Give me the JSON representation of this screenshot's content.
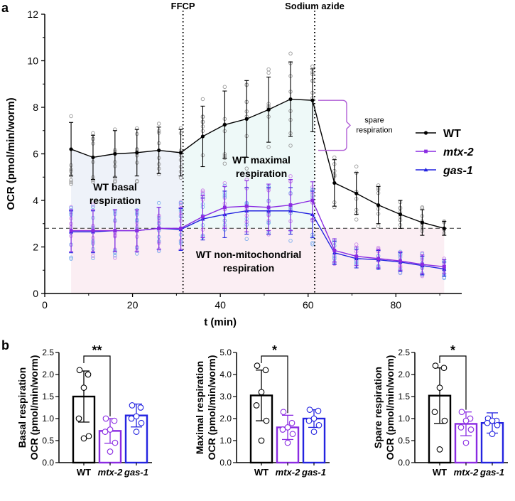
{
  "panels": {
    "a": "a",
    "b": "b"
  },
  "colors": {
    "wt": "#000000",
    "mtx2": "#8a2be2",
    "gas1": "#2424e0",
    "wt_points": "#9a9a9a",
    "mtx2_points": "#cc88e8",
    "gas1_points": "#7fb0ee"
  },
  "chart_data": [
    {
      "type": "line",
      "xlabel": "t (min)",
      "ylabel": "OCR (pmol/min/worm)",
      "xlim": [
        0,
        95
      ],
      "ylim": [
        0,
        12
      ],
      "xticks": [
        "0",
        "20",
        "40",
        "60",
        "80"
      ],
      "yticks": [
        "0",
        "2",
        "4",
        "6",
        "8",
        "10",
        "12"
      ],
      "x": [
        6,
        11,
        16,
        21,
        26,
        31,
        36,
        41,
        46,
        51,
        56,
        61,
        66,
        71,
        76,
        81,
        86,
        91
      ],
      "series": [
        {
          "name": "WT",
          "color": "#000000",
          "marker": "circle",
          "values": [
            6.2,
            5.85,
            6.0,
            6.05,
            6.15,
            6.05,
            6.75,
            7.25,
            7.5,
            7.9,
            8.35,
            8.3,
            4.75,
            4.3,
            3.8,
            3.4,
            3.05,
            2.8
          ],
          "errors": [
            1.15,
            0.95,
            1.0,
            1.0,
            1.0,
            1.0,
            1.3,
            1.45,
            1.65,
            1.4,
            1.6,
            1.35,
            1.0,
            0.9,
            0.8,
            0.6,
            0.55,
            0.3
          ]
        },
        {
          "name": "mtx-2",
          "color": "#8a2be2",
          "marker": "square",
          "values": [
            2.7,
            2.7,
            2.7,
            2.7,
            2.8,
            2.8,
            3.3,
            3.7,
            3.75,
            3.7,
            3.8,
            4.0,
            1.85,
            1.6,
            1.5,
            1.4,
            1.25,
            1.15
          ],
          "errors": [
            0.9,
            0.9,
            0.9,
            0.9,
            0.9,
            0.9,
            0.9,
            0.9,
            1.1,
            1.0,
            1.1,
            0.8,
            0.5,
            0.4,
            0.4,
            0.4,
            0.4,
            0.3
          ]
        },
        {
          "name": "gas-1",
          "color": "#2424e0",
          "marker": "triangle",
          "values": [
            2.65,
            2.65,
            2.7,
            2.7,
            2.8,
            2.75,
            3.2,
            3.4,
            3.55,
            3.55,
            3.55,
            3.4,
            1.75,
            1.5,
            1.45,
            1.35,
            1.2,
            1.05
          ],
          "errors": [
            0.9,
            0.9,
            0.9,
            0.9,
            0.9,
            0.9,
            0.9,
            1.0,
            1.0,
            1.0,
            1.0,
            1.0,
            0.5,
            0.4,
            0.4,
            0.4,
            0.4,
            0.3
          ]
        }
      ],
      "events": [
        {
          "x": 31.5,
          "label": "FFCP"
        },
        {
          "x": 61.5,
          "label": "Sodium azide"
        }
      ],
      "reference_line_y": 2.8,
      "annotations": [
        "WT basal respiration",
        "WT maximal respiration",
        "WT non-mitochondrial respiration",
        "spare respiration"
      ],
      "legend_position": "right"
    },
    {
      "type": "bar",
      "categories": [
        "WT",
        "mtx-2",
        "gas-1"
      ],
      "values": [
        1.5,
        0.72,
        1.07
      ],
      "errors": [
        0.58,
        0.28,
        0.26
      ],
      "points": [
        [
          2.1,
          2.0,
          1.7,
          1.0,
          0.6,
          0.55
        ],
        [
          1.0,
          0.95,
          0.75,
          0.7,
          0.45,
          0.25
        ],
        [
          1.3,
          1.25,
          1.05,
          1.0,
          0.9,
          0.7
        ]
      ],
      "ylabel": "Basal respiration OCR (pmol/min/worm)",
      "ylim": [
        0,
        2.5
      ],
      "yticks": [
        "0.0",
        "0.5",
        "1.0",
        "1.5",
        "2.0",
        "2.5"
      ],
      "significance": "**"
    },
    {
      "type": "bar",
      "categories": [
        "WT",
        "mtx-2",
        "gas-1"
      ],
      "values": [
        3.05,
        1.6,
        2.0
      ],
      "errors": [
        1.15,
        0.55,
        0.4
      ],
      "points": [
        [
          4.4,
          4.2,
          3.2,
          2.6,
          1.9,
          1.0
        ],
        [
          2.3,
          1.8,
          1.6,
          1.5,
          1.3,
          0.9
        ],
        [
          2.4,
          2.35,
          2.0,
          1.9,
          1.7,
          1.4
        ]
      ],
      "ylabel": "Maximal respiration OCR (pmol/min/worm)",
      "ylim": [
        0,
        5
      ],
      "yticks": [
        "0.0",
        "1.0",
        "2.0",
        "3.0",
        "4.0",
        "5.0"
      ],
      "significance": "*"
    },
    {
      "type": "bar",
      "categories": [
        "WT",
        "mtx-2",
        "gas-1"
      ],
      "values": [
        1.52,
        0.88,
        0.9
      ],
      "errors": [
        0.63,
        0.27,
        0.23
      ],
      "points": [
        [
          2.2,
          2.15,
          1.7,
          1.15,
          0.95,
          0.3
        ],
        [
          1.15,
          1.0,
          0.95,
          0.8,
          0.75,
          0.45
        ],
        [
          1.0,
          0.95,
          0.95,
          0.9,
          0.85,
          0.65
        ]
      ],
      "ylabel": "Spare respiration OCR (pmol/min/worm)",
      "ylim": [
        0,
        2.5
      ],
      "yticks": [
        "0.0",
        "0.5",
        "1.0",
        "1.5",
        "2.0",
        "2.5"
      ],
      "significance": "*"
    }
  ]
}
